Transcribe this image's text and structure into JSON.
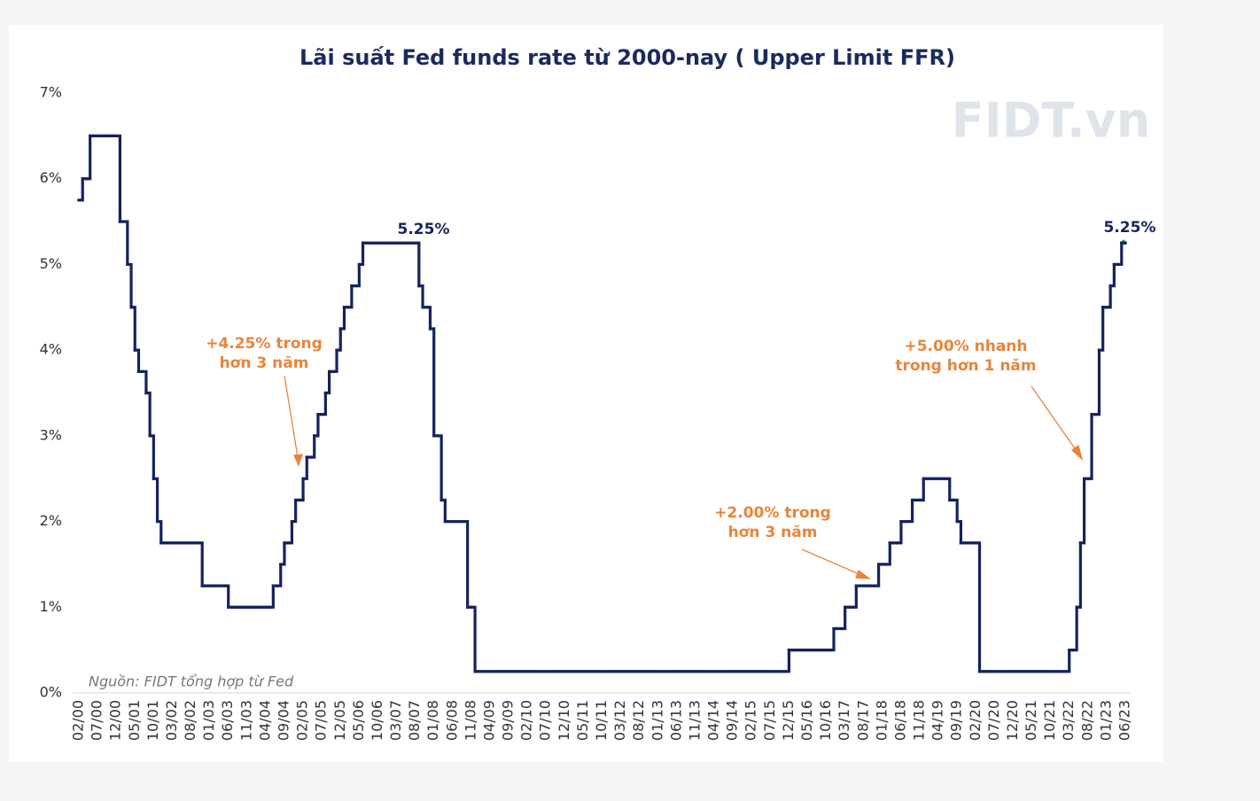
{
  "chart_data": {
    "type": "step-line",
    "title": "Lãi suất Fed funds rate từ 2000-nay ( Upper Limit FFR)",
    "source": "Nguồn: FIDT tổng hợp từ Fed",
    "logo": "FIDT.vn",
    "color": "#13235e",
    "annotation_color": "#e8843c",
    "ylim": [
      0,
      7
    ],
    "yticks": [
      {
        "value": 0,
        "label": "0%"
      },
      {
        "value": 1,
        "label": "1%"
      },
      {
        "value": 2,
        "label": "2%"
      },
      {
        "value": 3,
        "label": "3%"
      },
      {
        "value": 4,
        "label": "4%"
      },
      {
        "value": 5,
        "label": "5%"
      },
      {
        "value": 6,
        "label": "6%"
      },
      {
        "value": 7,
        "label": "7%"
      }
    ],
    "annotations": [
      {
        "lines": [
          "5.25%"
        ]
      },
      {
        "lines": [
          "5.25%"
        ]
      },
      {
        "lines": [
          "+4.25% trong",
          "hơn 3 năm"
        ]
      },
      {
        "lines": [
          "+2.00% trong",
          "hơn 3 năm"
        ]
      },
      {
        "lines": [
          "+5.00% nhanh",
          "trong hơn 1 năm"
        ]
      }
    ],
    "categories": [
      "02/00",
      null,
      null,
      null,
      null,
      "07/00",
      null,
      null,
      null,
      null,
      "12/00",
      null,
      null,
      null,
      null,
      "05/01",
      null,
      null,
      null,
      null,
      "10/01",
      null,
      null,
      null,
      null,
      "03/02",
      null,
      null,
      null,
      null,
      "08/02",
      null,
      null,
      null,
      null,
      "01/03",
      null,
      null,
      null,
      null,
      "06/03",
      null,
      null,
      null,
      null,
      "11/03",
      null,
      null,
      null,
      null,
      "04/04",
      null,
      null,
      null,
      null,
      "09/04",
      null,
      null,
      null,
      null,
      "02/05",
      null,
      null,
      null,
      null,
      "07/05",
      null,
      null,
      null,
      null,
      "12/05",
      null,
      null,
      null,
      null,
      "05/06",
      null,
      null,
      null,
      null,
      "10/06",
      null,
      null,
      null,
      null,
      "03/07",
      null,
      null,
      null,
      null,
      "08/07",
      null,
      null,
      null,
      null,
      "01/08",
      null,
      null,
      null,
      null,
      "06/08",
      null,
      null,
      null,
      null,
      "11/08",
      null,
      null,
      null,
      null,
      "04/09",
      null,
      null,
      null,
      null,
      "09/09",
      null,
      null,
      null,
      null,
      "02/10",
      null,
      null,
      null,
      null,
      "07/10",
      null,
      null,
      null,
      null,
      "12/10",
      null,
      null,
      null,
      null,
      "05/11",
      null,
      null,
      null,
      null,
      "10/11",
      null,
      null,
      null,
      null,
      "03/12",
      null,
      null,
      null,
      null,
      "08/12",
      null,
      null,
      null,
      null,
      "01/13",
      null,
      null,
      null,
      null,
      "06/13",
      null,
      null,
      null,
      null,
      "11/13",
      null,
      null,
      null,
      null,
      "04/14",
      null,
      null,
      null,
      null,
      "09/14",
      null,
      null,
      null,
      null,
      "02/15",
      null,
      null,
      null,
      null,
      "07/15",
      null,
      null,
      null,
      null,
      "12/15",
      null,
      null,
      null,
      null,
      "05/16",
      null,
      null,
      null,
      null,
      "10/16",
      null,
      null,
      null,
      null,
      "03/17",
      null,
      null,
      null,
      null,
      "08/17",
      null,
      null,
      null,
      null,
      "01/18",
      null,
      null,
      null,
      null,
      "06/18",
      null,
      null,
      null,
      null,
      "11/18",
      null,
      null,
      null,
      null,
      "04/19",
      null,
      null,
      null,
      null,
      "09/19",
      null,
      null,
      null,
      null,
      "02/20",
      null,
      null,
      null,
      null,
      "07/20",
      null,
      null,
      null,
      null,
      "12/20",
      null,
      null,
      null,
      null,
      "05/21",
      null,
      null,
      null,
      null,
      "10/21",
      null,
      null,
      null,
      null,
      "03/22",
      null,
      null,
      null,
      null,
      "08/22",
      null,
      null,
      null,
      null,
      "01/23",
      null,
      null,
      null,
      null,
      "06/23"
    ],
    "values": [
      5.75,
      6,
      6,
      6.5,
      6.5,
      6.5,
      6.5,
      6.5,
      6.5,
      6.5,
      6.5,
      5.5,
      5.5,
      5,
      4.5,
      4,
      3.75,
      3.75,
      3.5,
      3,
      2.5,
      2,
      1.75,
      1.75,
      1.75,
      1.75,
      1.75,
      1.75,
      1.75,
      1.75,
      1.75,
      1.75,
      1.75,
      1.25,
      1.25,
      1.25,
      1.25,
      1.25,
      1.25,
      1.25,
      1,
      1,
      1,
      1,
      1,
      1,
      1,
      1,
      1,
      1,
      1,
      1,
      1.25,
      1.25,
      1.5,
      1.75,
      1.75,
      2,
      2.25,
      2.25,
      2.5,
      2.75,
      2.75,
      3,
      3.25,
      3.25,
      3.5,
      3.75,
      3.75,
      4,
      4.25,
      4.5,
      4.5,
      4.75,
      4.75,
      5,
      5.25,
      5.25,
      5.25,
      5.25,
      5.25,
      5.25,
      5.25,
      5.25,
      5.25,
      5.25,
      5.25,
      5.25,
      5.25,
      5.25,
      5.25,
      4.75,
      4.5,
      4.5,
      4.25,
      3,
      3,
      2.25,
      2,
      2,
      2,
      2,
      2,
      2,
      1,
      1,
      0.25,
      0.25,
      0.25,
      0.25,
      0.25,
      0.25,
      0.25,
      0.25,
      0.25,
      0.25,
      0.25,
      0.25,
      0.25,
      0.25,
      0.25,
      0.25,
      0.25,
      0.25,
      0.25,
      0.25,
      0.25,
      0.25,
      0.25,
      0.25,
      0.25,
      0.25,
      0.25,
      0.25,
      0.25,
      0.25,
      0.25,
      0.25,
      0.25,
      0.25,
      0.25,
      0.25,
      0.25,
      0.25,
      0.25,
      0.25,
      0.25,
      0.25,
      0.25,
      0.25,
      0.25,
      0.25,
      0.25,
      0.25,
      0.25,
      0.25,
      0.25,
      0.25,
      0.25,
      0.25,
      0.25,
      0.25,
      0.25,
      0.25,
      0.25,
      0.25,
      0.25,
      0.25,
      0.25,
      0.25,
      0.25,
      0.25,
      0.25,
      0.25,
      0.25,
      0.25,
      0.25,
      0.25,
      0.25,
      0.25,
      0.25,
      0.25,
      0.25,
      0.25,
      0.25,
      0.25,
      0.25,
      0.25,
      0.25,
      0.25,
      0.5,
      0.5,
      0.5,
      0.5,
      0.5,
      0.5,
      0.5,
      0.5,
      0.5,
      0.5,
      0.5,
      0.5,
      0.75,
      0.75,
      0.75,
      1,
      1,
      1,
      1.25,
      1.25,
      1.25,
      1.25,
      1.25,
      1.25,
      1.5,
      1.5,
      1.5,
      1.75,
      1.75,
      1.75,
      2,
      2,
      2,
      2.25,
      2.25,
      2.25,
      2.5,
      2.5,
      2.5,
      2.5,
      2.5,
      2.5,
      2.5,
      2.25,
      2.25,
      2,
      1.75,
      1.75,
      1.75,
      1.75,
      1.75,
      0.25,
      0.25,
      0.25,
      0.25,
      0.25,
      0.25,
      0.25,
      0.25,
      0.25,
      0.25,
      0.25,
      0.25,
      0.25,
      0.25,
      0.25,
      0.25,
      0.25,
      0.25,
      0.25,
      0.25,
      0.25,
      0.25,
      0.25,
      0.25,
      0.5,
      0.5,
      1,
      1.75,
      2.5,
      2.5,
      3.25,
      3.25,
      4,
      4.5,
      4.5,
      4.75,
      5,
      5,
      5.25,
      5.25
    ]
  }
}
